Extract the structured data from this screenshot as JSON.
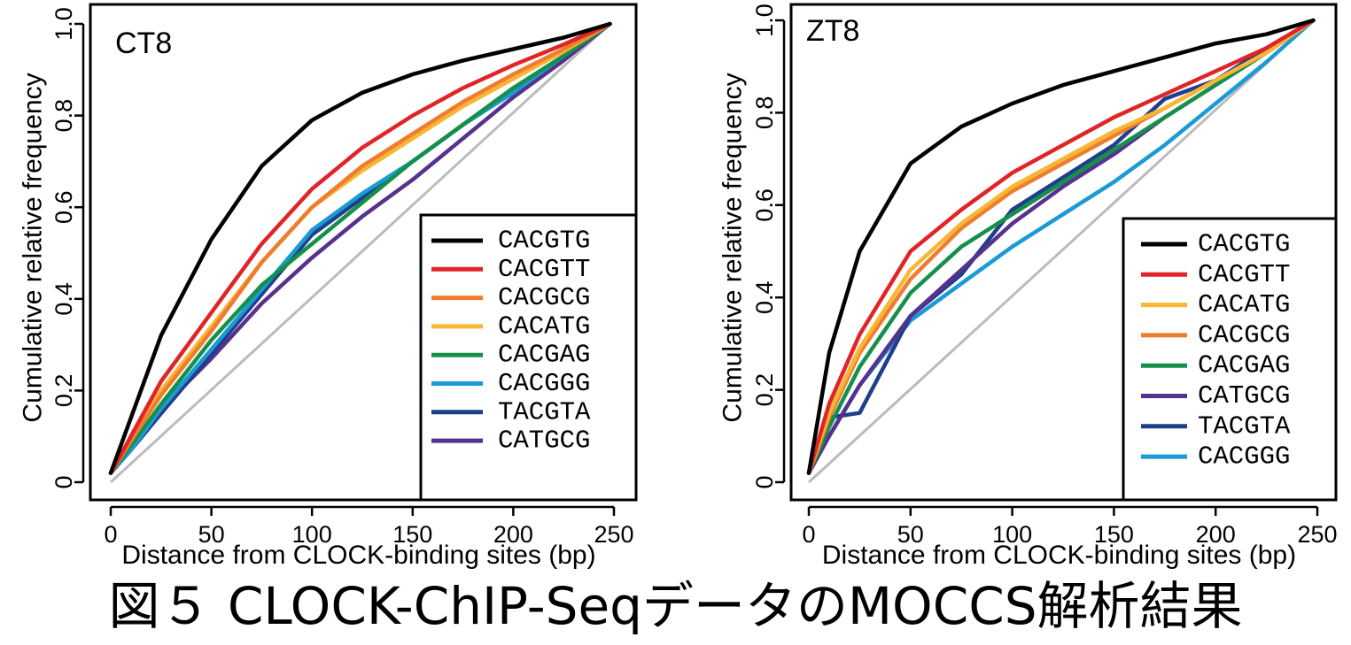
{
  "caption": "図５ CLOCK-ChIP-SeqデータのMOCCS解析結果",
  "colors": {
    "CACGTG": "#000000",
    "CACGTT": "#e02427",
    "CACGCG": "#ee7d2e",
    "CACATG": "#f8b634",
    "CACGAG": "#15904a",
    "CACGGG": "#1b9ad6",
    "TACGTA": "#1f3e8c",
    "CATGCG": "#57318e",
    "diagonal": "#bbbbbb"
  },
  "chart_data": [
    {
      "type": "line",
      "panel_label": "CT8",
      "xlabel": "Distance from CLOCK-binding sites (bp)",
      "ylabel": "Cumulative relative frequency",
      "xlim": [
        0,
        250
      ],
      "ylim": [
        0,
        1.0
      ],
      "xticks": [
        "0",
        "50",
        "100",
        "150",
        "200",
        "250"
      ],
      "yticks": [
        "0",
        "0.2",
        "0.4",
        "0.6",
        "0.8",
        "1.0"
      ],
      "legend_position": "bottom-right",
      "diagonal": {
        "x": [
          0,
          248
        ],
        "y": [
          0,
          1.0
        ]
      },
      "x": [
        0,
        10,
        25,
        50,
        75,
        100,
        125,
        150,
        175,
        200,
        225,
        248
      ],
      "series": [
        {
          "name": "CACGTG",
          "values": [
            0.02,
            0.14,
            0.32,
            0.53,
            0.69,
            0.79,
            0.85,
            0.89,
            0.92,
            0.945,
            0.97,
            1.0
          ]
        },
        {
          "name": "CACGTT",
          "values": [
            0.02,
            0.1,
            0.22,
            0.37,
            0.52,
            0.64,
            0.73,
            0.8,
            0.86,
            0.91,
            0.955,
            1.0
          ]
        },
        {
          "name": "CACGCG",
          "values": [
            0.02,
            0.09,
            0.19,
            0.33,
            0.48,
            0.6,
            0.69,
            0.76,
            0.83,
            0.89,
            0.945,
            1.0
          ]
        },
        {
          "name": "CACATG",
          "values": [
            0.02,
            0.09,
            0.2,
            0.34,
            0.48,
            0.6,
            0.68,
            0.75,
            0.82,
            0.88,
            0.94,
            1.0
          ]
        },
        {
          "name": "CACGAG",
          "values": [
            0.02,
            0.08,
            0.17,
            0.31,
            0.43,
            0.52,
            0.61,
            0.7,
            0.78,
            0.86,
            0.93,
            1.0
          ]
        },
        {
          "name": "CACGGG",
          "values": [
            0.02,
            0.07,
            0.16,
            0.29,
            0.42,
            0.55,
            0.63,
            0.7,
            0.78,
            0.85,
            0.93,
            1.0
          ]
        },
        {
          "name": "TACGTA",
          "values": [
            0.02,
            0.07,
            0.15,
            0.28,
            0.41,
            0.54,
            0.62,
            0.7,
            0.78,
            0.86,
            0.93,
            1.0
          ]
        },
        {
          "name": "CATGCG",
          "values": [
            0.02,
            0.07,
            0.16,
            0.27,
            0.39,
            0.49,
            0.58,
            0.66,
            0.75,
            0.84,
            0.92,
            1.0
          ]
        }
      ]
    },
    {
      "type": "line",
      "panel_label": "ZT8",
      "xlabel": "Distance from CLOCK-binding sites (bp)",
      "ylabel": "Cumulative relative frequency",
      "xlim": [
        0,
        250
      ],
      "ylim": [
        0,
        1.0
      ],
      "xticks": [
        "0",
        "50",
        "100",
        "150",
        "200",
        "250"
      ],
      "yticks": [
        "0",
        "0.2",
        "0.4",
        "0.6",
        "0.8",
        "1.0"
      ],
      "legend_position": "bottom-right",
      "diagonal": {
        "x": [
          0,
          248
        ],
        "y": [
          0,
          1.0
        ]
      },
      "x": [
        0,
        10,
        25,
        50,
        75,
        100,
        125,
        150,
        175,
        200,
        225,
        248
      ],
      "series": [
        {
          "name": "CACGTG",
          "values": [
            0.02,
            0.28,
            0.5,
            0.69,
            0.77,
            0.82,
            0.86,
            0.89,
            0.92,
            0.95,
            0.97,
            1.0
          ]
        },
        {
          "name": "CACGTT",
          "values": [
            0.02,
            0.17,
            0.32,
            0.5,
            0.59,
            0.67,
            0.73,
            0.79,
            0.84,
            0.89,
            0.94,
            1.0
          ]
        },
        {
          "name": "CACATG",
          "values": [
            0.02,
            0.15,
            0.29,
            0.46,
            0.56,
            0.64,
            0.7,
            0.76,
            0.81,
            0.87,
            0.93,
            1.0
          ]
        },
        {
          "name": "CACGCG",
          "values": [
            0.02,
            0.14,
            0.28,
            0.44,
            0.55,
            0.63,
            0.69,
            0.75,
            0.81,
            0.87,
            0.93,
            1.0
          ]
        },
        {
          "name": "CACGAG",
          "values": [
            0.02,
            0.12,
            0.25,
            0.41,
            0.51,
            0.58,
            0.65,
            0.72,
            0.79,
            0.86,
            0.93,
            1.0
          ]
        },
        {
          "name": "CATGCG",
          "values": [
            0.02,
            0.1,
            0.21,
            0.36,
            0.46,
            0.56,
            0.64,
            0.71,
            0.79,
            0.86,
            0.93,
            1.0
          ]
        },
        {
          "name": "TACGTA",
          "values": [
            0.02,
            0.14,
            0.15,
            0.36,
            0.45,
            0.59,
            0.66,
            0.73,
            0.83,
            0.87,
            0.94,
            1.0
          ]
        },
        {
          "name": "CACGGG",
          "values": [
            0.02,
            0.1,
            0.21,
            0.35,
            0.43,
            0.51,
            0.58,
            0.65,
            0.73,
            0.82,
            0.91,
            1.0
          ]
        }
      ]
    }
  ]
}
